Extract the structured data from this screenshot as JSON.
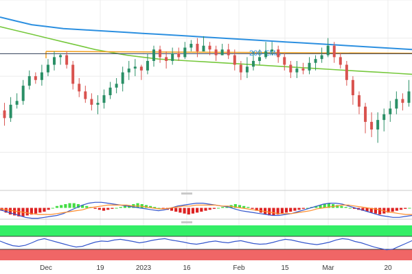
{
  "chart_data": {
    "type": "candlestick",
    "x_ticks": [
      "Dec",
      "19",
      "2023",
      "16",
      "Feb",
      "15",
      "Mar",
      "20"
    ],
    "y_range": [
      0,
      100
    ],
    "grid": true,
    "colors": {
      "up": "#2a8f66",
      "down": "#d9534f",
      "ema200": "#2b8fe0",
      "ma_green": "#76c83c",
      "trendline": "#f0a020",
      "horizontal": "#2b3a55",
      "macd_up": "#44dd44",
      "macd_down": "#dd2222",
      "macd_line": "#3355cc",
      "signal_line": "#ff8c2a",
      "rsi_line": "#3355cc",
      "rsi_overbought": "#33ee66",
      "rsi_oversold": "#f06666"
    },
    "candles": [
      [
        42,
        38,
        46,
        34
      ],
      [
        38,
        45,
        49,
        36
      ],
      [
        45,
        47,
        51,
        43
      ],
      [
        47,
        55,
        58,
        45
      ],
      [
        55,
        60,
        63,
        53
      ],
      [
        60,
        58,
        62,
        56
      ],
      [
        58,
        62,
        66,
        55
      ],
      [
        62,
        66,
        69,
        60
      ],
      [
        66,
        70,
        73,
        63
      ],
      [
        70,
        71,
        72,
        66
      ],
      [
        71,
        66,
        73,
        64
      ],
      [
        66,
        56,
        68,
        53
      ],
      [
        56,
        52,
        59,
        49
      ],
      [
        52,
        48,
        55,
        46
      ],
      [
        48,
        45,
        51,
        42
      ],
      [
        45,
        46,
        50,
        40
      ],
      [
        46,
        50,
        53,
        43
      ],
      [
        50,
        54,
        57,
        48
      ],
      [
        54,
        56,
        59,
        51
      ],
      [
        56,
        62,
        65,
        52
      ],
      [
        62,
        64,
        68,
        58
      ],
      [
        64,
        65,
        69,
        60
      ],
      [
        65,
        63,
        66,
        58
      ],
      [
        63,
        68,
        72,
        61
      ],
      [
        68,
        74,
        76,
        65
      ],
      [
        74,
        70,
        76,
        67
      ],
      [
        70,
        68,
        73,
        64
      ],
      [
        68,
        72,
        75,
        66
      ],
      [
        72,
        70,
        75,
        68
      ],
      [
        70,
        75,
        78,
        69
      ],
      [
        75,
        77,
        79,
        73
      ],
      [
        77,
        73,
        80,
        70
      ],
      [
        73,
        76,
        81,
        74
      ],
      [
        76,
        74,
        78,
        71
      ],
      [
        74,
        71,
        76,
        68
      ],
      [
        71,
        74,
        77,
        71
      ],
      [
        74,
        71,
        77,
        69
      ],
      [
        71,
        66,
        74,
        63
      ],
      [
        66,
        62,
        68,
        58
      ],
      [
        62,
        65,
        70,
        59
      ],
      [
        65,
        68,
        73,
        63
      ],
      [
        68,
        70,
        74,
        66
      ],
      [
        70,
        73,
        78,
        69
      ],
      [
        73,
        74,
        78,
        71
      ],
      [
        74,
        70,
        76,
        67
      ],
      [
        70,
        66,
        72,
        63
      ],
      [
        66,
        62,
        68,
        59
      ],
      [
        62,
        64,
        68,
        59
      ],
      [
        64,
        63,
        67,
        61
      ],
      [
        63,
        67,
        70,
        61
      ],
      [
        67,
        69,
        71,
        63
      ],
      [
        69,
        71,
        75,
        67
      ],
      [
        71,
        76,
        80,
        70
      ],
      [
        76,
        70,
        78,
        67
      ],
      [
        70,
        66,
        72,
        64
      ],
      [
        66,
        58,
        68,
        55
      ],
      [
        58,
        50,
        60,
        45
      ],
      [
        50,
        44,
        52,
        40
      ],
      [
        44,
        36,
        46,
        30
      ],
      [
        36,
        32,
        41,
        28
      ],
      [
        32,
        37,
        41,
        25
      ],
      [
        37,
        40,
        43,
        31
      ],
      [
        40,
        43,
        47,
        36
      ],
      [
        43,
        48,
        52,
        40
      ],
      [
        48,
        46,
        51,
        42
      ],
      [
        46,
        52,
        58,
        44
      ]
    ],
    "ema200_label": "200-EMA",
    "ema200": [
      91,
      89,
      87,
      86,
      85,
      84.5,
      84,
      83.5,
      83,
      82.5,
      82,
      81.5,
      81,
      80.5,
      80,
      79.5,
      79,
      78.5,
      78,
      77.5,
      77,
      76.5,
      76,
      75.5,
      75,
      74.5,
      74
    ],
    "ma_green": [
      86,
      84,
      82,
      80,
      78,
      76,
      74,
      72.5,
      71,
      70,
      69,
      68.5,
      68,
      67.5,
      67,
      66.5,
      66,
      65.5,
      65,
      64.5,
      64,
      63.5,
      63,
      62.5,
      62,
      61.5,
      61
    ],
    "trendline": {
      "y": [
        73,
        72
      ]
    },
    "horizontal_line": 71.8,
    "macd_histogram": [
      -3,
      -5,
      -7,
      -8,
      -9,
      -9,
      -8,
      -7,
      -6,
      -5,
      -4,
      -2,
      0,
      2,
      3,
      4,
      5,
      5,
      4,
      3,
      2,
      1,
      -1,
      -2,
      -3,
      -2,
      -1,
      0,
      1,
      2,
      3,
      4,
      5,
      4,
      3,
      2,
      1,
      0,
      -1,
      -2,
      -3,
      -4,
      -5,
      -6,
      -7,
      -6,
      -5,
      -4,
      -3,
      -2,
      -1,
      0,
      1,
      2,
      3,
      4,
      3,
      2,
      1,
      -1,
      -3,
      -5,
      -7,
      -8,
      -8,
      -7,
      -6,
      -5,
      -4,
      -3,
      -2,
      -1,
      0,
      1,
      2,
      3,
      4,
      5,
      4,
      3,
      2,
      1,
      0,
      -1,
      -2,
      -3,
      -4,
      -5,
      -6,
      -7,
      -6,
      -5,
      -4,
      -3,
      -2,
      -1,
      0
    ],
    "macd_line": [
      -2,
      -4,
      -6,
      -8,
      -10,
      -11,
      -11,
      -10,
      -9,
      -8,
      -6,
      -3,
      0,
      3,
      5,
      6,
      6,
      5,
      4,
      3,
      2,
      1,
      0,
      -1,
      -2,
      -3,
      -2,
      0,
      2,
      3,
      4,
      5,
      5,
      4,
      3,
      2,
      1,
      -1,
      -3,
      -4,
      -5,
      -6,
      -7,
      -8,
      -8,
      -7,
      -6,
      -4,
      -2,
      0,
      2,
      4,
      5,
      5,
      4,
      2,
      0,
      -2,
      -4,
      -6,
      -8,
      -9,
      -10,
      -10,
      -9,
      -8
    ],
    "signal_line": [
      -1,
      -2,
      -3,
      -4,
      -5,
      -6,
      -7,
      -7,
      -7,
      -6,
      -5,
      -4,
      -3,
      -2,
      0,
      1,
      2,
      3,
      3,
      3,
      3,
      2,
      2,
      1,
      0,
      -1,
      -1,
      0,
      1,
      2,
      2,
      3,
      3,
      3,
      3,
      2,
      2,
      1,
      0,
      -1,
      -2,
      -3,
      -4,
      -5,
      -6,
      -6,
      -6,
      -5,
      -4,
      -3,
      -1,
      0,
      1,
      2,
      3,
      3,
      2,
      1,
      0,
      -1,
      -2,
      -4,
      -5,
      -6,
      -7,
      -7
    ],
    "rsi": [
      55,
      48,
      42,
      40,
      43,
      50,
      58,
      62,
      57,
      52,
      47,
      42,
      38,
      40,
      46,
      52,
      55,
      54,
      58,
      60,
      57,
      54,
      50,
      53,
      57,
      60,
      62,
      58,
      55,
      52,
      48,
      46,
      49,
      53,
      55,
      52,
      50,
      54,
      56,
      52,
      48,
      46,
      47,
      51,
      56,
      60,
      58,
      54,
      50,
      47,
      45,
      48,
      52,
      58,
      62,
      60,
      54,
      50,
      44,
      38,
      34,
      30,
      32,
      40,
      48,
      56
    ]
  }
}
